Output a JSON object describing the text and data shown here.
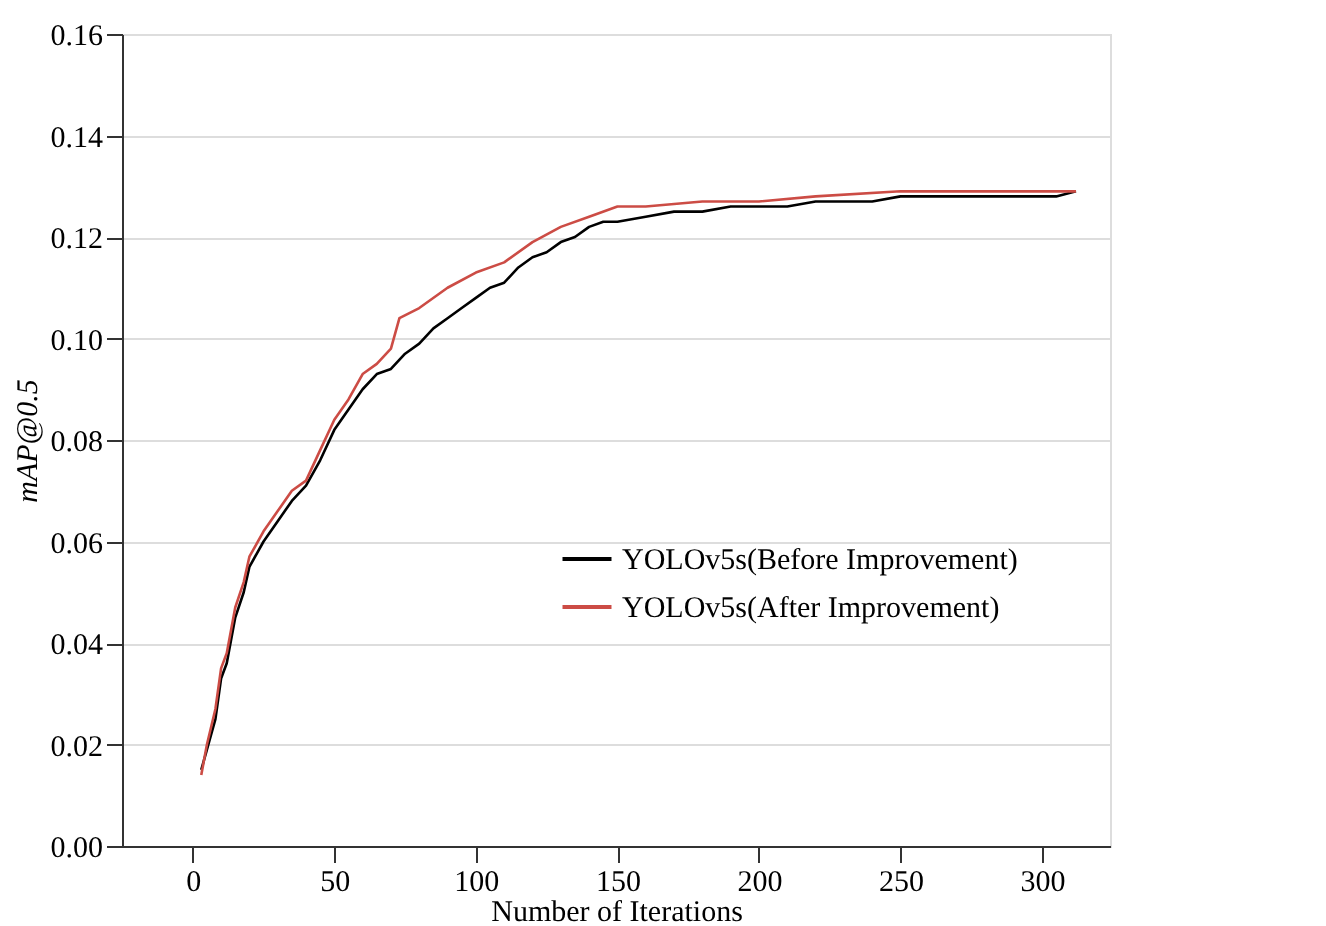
{
  "chart_data": {
    "type": "line",
    "xlabel": "Number of Iterations",
    "ylabel": "mAP@0.5",
    "xlim": [
      -25,
      324
    ],
    "xticks": [
      0,
      50,
      100,
      150,
      200,
      250,
      300
    ],
    "ylim": [
      0,
      0.16
    ],
    "yticks": [
      {
        "value": 0,
        "label": "0.00"
      },
      {
        "value": 0.02,
        "label": "0.02"
      },
      {
        "value": 0.04,
        "label": "0.04"
      },
      {
        "value": 0.06,
        "label": "0.06"
      },
      {
        "value": 0.08,
        "label": "0.08"
      },
      {
        "value": 0.1,
        "label": "0.10"
      },
      {
        "value": 0.12,
        "label": "0.12"
      },
      {
        "value": 0.14,
        "label": "0.14"
      },
      {
        "value": 0.16,
        "label": "0.16"
      }
    ],
    "grid": "y",
    "legend": "right",
    "line_style": "solid",
    "marker": "none",
    "series": [
      {
        "name": "YOLOv5s(Before Improvement)",
        "color": "#000000",
        "x": [
          3,
          5,
          8,
          10,
          12,
          15,
          18,
          20,
          25,
          30,
          35,
          40,
          45,
          50,
          55,
          60,
          65,
          70,
          75,
          80,
          85,
          90,
          95,
          100,
          105,
          110,
          115,
          120,
          125,
          130,
          135,
          140,
          145,
          150,
          160,
          170,
          180,
          190,
          200,
          210,
          220,
          230,
          240,
          250,
          260,
          270,
          280,
          290,
          300,
          305,
          312
        ],
        "values": [
          0.015,
          0.019,
          0.025,
          0.033,
          0.036,
          0.045,
          0.05,
          0.055,
          0.06,
          0.064,
          0.068,
          0.071,
          0.076,
          0.082,
          0.086,
          0.09,
          0.093,
          0.094,
          0.097,
          0.099,
          0.102,
          0.104,
          0.106,
          0.108,
          0.11,
          0.111,
          0.114,
          0.116,
          0.117,
          0.119,
          0.12,
          0.122,
          0.123,
          0.123,
          0.124,
          0.125,
          0.125,
          0.126,
          0.126,
          0.126,
          0.127,
          0.127,
          0.127,
          0.128,
          0.128,
          0.128,
          0.128,
          0.128,
          0.128,
          0.128,
          0.129
        ]
      },
      {
        "name": "YOLOv5s(After Improvement)",
        "color": "#cc4c45",
        "x": [
          3,
          5,
          8,
          10,
          12,
          15,
          18,
          20,
          25,
          30,
          35,
          40,
          45,
          50,
          55,
          60,
          65,
          70,
          73,
          80,
          90,
          100,
          110,
          120,
          130,
          140,
          150,
          160,
          180,
          200,
          220,
          250,
          280,
          300,
          312
        ],
        "values": [
          0.014,
          0.02,
          0.027,
          0.035,
          0.038,
          0.047,
          0.052,
          0.057,
          0.062,
          0.066,
          0.07,
          0.072,
          0.078,
          0.084,
          0.088,
          0.093,
          0.095,
          0.098,
          0.104,
          0.106,
          0.11,
          0.113,
          0.115,
          0.119,
          0.122,
          0.124,
          0.126,
          0.126,
          0.127,
          0.127,
          0.128,
          0.129,
          0.129,
          0.129,
          0.129
        ]
      }
    ]
  }
}
